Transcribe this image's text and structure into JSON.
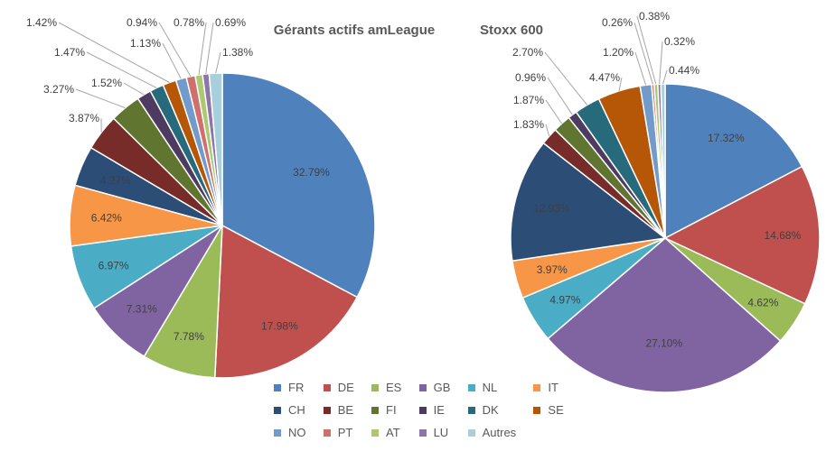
{
  "chart_data": [
    {
      "type": "pie",
      "title": "Gérants actifs amLeague",
      "categories": [
        "FR",
        "DE",
        "ES",
        "GB",
        "NL",
        "IT",
        "CH",
        "BE",
        "FI",
        "IE",
        "DK",
        "SE",
        "NO",
        "PT",
        "AT",
        "LU",
        "Autres"
      ],
      "values": [
        32.79,
        17.98,
        7.78,
        7.31,
        6.97,
        6.42,
        4.27,
        3.87,
        3.27,
        1.52,
        1.47,
        1.42,
        1.13,
        0.94,
        0.78,
        0.69,
        1.38
      ],
      "labels": [
        "32.79%",
        "17.98%",
        "7.78%",
        "7.31%",
        "6.97%",
        "6.42%",
        "4.27%",
        "3.87%",
        "3.27%",
        "1.52%",
        "1.47%",
        "1.42%",
        "1.13%",
        "0.94%",
        "0.78%",
        "0.69%",
        "1.38%"
      ]
    },
    {
      "type": "pie",
      "title": "Stoxx 600",
      "categories": [
        "FR",
        "DE",
        "ES",
        "GB",
        "NL",
        "IT",
        "CH",
        "BE",
        "FI",
        "IE",
        "DK",
        "SE",
        "NO",
        "PT",
        "AT",
        "LU",
        "Autres"
      ],
      "values": [
        17.32,
        14.68,
        4.62,
        27.1,
        4.97,
        3.97,
        12.93,
        1.83,
        1.87,
        0.96,
        2.7,
        4.47,
        1.2,
        0.26,
        0.38,
        0.32,
        0.44
      ],
      "labels": [
        "17.32%",
        "14.68%",
        "4.62%",
        "27.10%",
        "4.97%",
        "3.97%",
        "12.93%",
        "1.83%",
        "1.87%",
        "0.96%",
        "2.70%",
        "4.47%",
        "1.20%",
        "0.26%",
        "0.38%",
        "0.32%",
        "0.44%"
      ]
    }
  ],
  "legend": {
    "placement": "bottom-center",
    "entries": [
      "FR",
      "DE",
      "ES",
      "GB",
      "NL",
      "IT",
      "CH",
      "BE",
      "FI",
      "IE",
      "DK",
      "SE",
      "NO",
      "PT",
      "AT",
      "LU",
      "Autres"
    ]
  },
  "colors": [
    "#4f81bd",
    "#c0504d",
    "#9bbb59",
    "#8064a2",
    "#4bacc6",
    "#f79646",
    "#2c4d75",
    "#772c2a",
    "#5f7530",
    "#4d3b62",
    "#276a7c",
    "#b65708",
    "#729aca",
    "#d0706d",
    "#abc970",
    "#8c76a9",
    "#a8cfdc"
  ]
}
